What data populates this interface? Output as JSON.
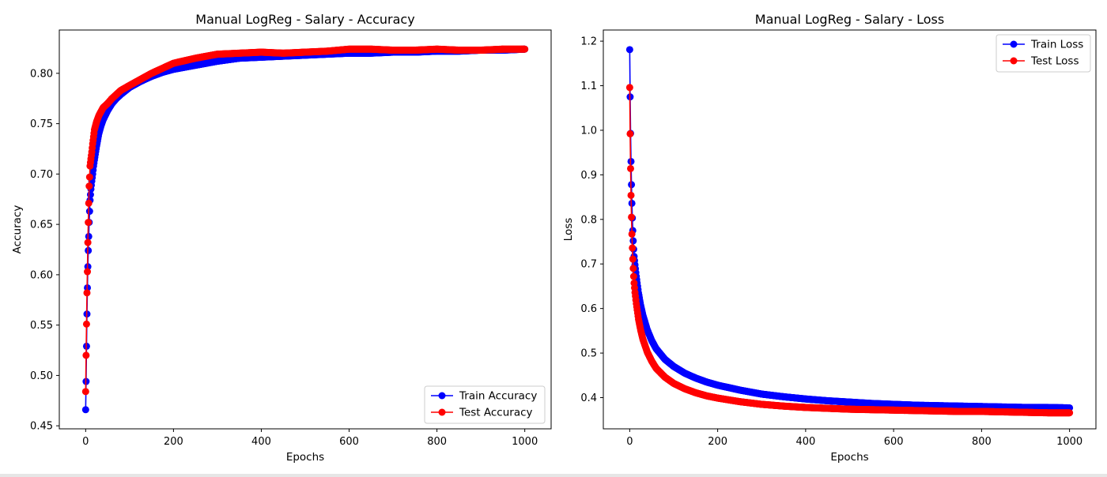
{
  "chart_data": [
    {
      "type": "line",
      "title": "Manual LogReg - Salary - Accuracy",
      "xlabel": "Epochs",
      "ylabel": "Accuracy",
      "xlim": [
        -60,
        1060
      ],
      "ylim": [
        0.447,
        0.843
      ],
      "xticks": [
        0,
        200,
        400,
        600,
        800,
        1000
      ],
      "yticks": [
        0.45,
        0.5,
        0.55,
        0.6,
        0.65,
        0.7,
        0.75,
        0.8
      ],
      "xtick_labels": [
        "0",
        "200",
        "400",
        "600",
        "800",
        "1000"
      ],
      "ytick_labels": [
        "0.45",
        "0.50",
        "0.55",
        "0.60",
        "0.65",
        "0.70",
        "0.75",
        "0.80"
      ],
      "legend": "lower-right",
      "markers": "every-epoch",
      "series": [
        {
          "name": "Train Accuracy",
          "color": "#0000ff",
          "points": [
            [
              0,
              0.466
            ],
            [
              1,
              0.494
            ],
            [
              2,
              0.529
            ],
            [
              3,
              0.561
            ],
            [
              4,
              0.587
            ],
            [
              5,
              0.608
            ],
            [
              6,
              0.624
            ],
            [
              7,
              0.638
            ],
            [
              8,
              0.652
            ],
            [
              9,
              0.663
            ],
            [
              10,
              0.674
            ],
            [
              12,
              0.685
            ],
            [
              14,
              0.693
            ],
            [
              16,
              0.7
            ],
            [
              18,
              0.708
            ],
            [
              20,
              0.714
            ],
            [
              25,
              0.728
            ],
            [
              30,
              0.74
            ],
            [
              35,
              0.748
            ],
            [
              40,
              0.754
            ],
            [
              50,
              0.763
            ],
            [
              60,
              0.77
            ],
            [
              70,
              0.775
            ],
            [
              80,
              0.779
            ],
            [
              100,
              0.786
            ],
            [
              125,
              0.792
            ],
            [
              150,
              0.797
            ],
            [
              175,
              0.801
            ],
            [
              200,
              0.804
            ],
            [
              250,
              0.808
            ],
            [
              300,
              0.812
            ],
            [
              350,
              0.815
            ],
            [
              400,
              0.816
            ],
            [
              450,
              0.817
            ],
            [
              500,
              0.818
            ],
            [
              550,
              0.819
            ],
            [
              600,
              0.82
            ],
            [
              650,
              0.82
            ],
            [
              700,
              0.821
            ],
            [
              750,
              0.821
            ],
            [
              800,
              0.822
            ],
            [
              850,
              0.822
            ],
            [
              900,
              0.823
            ],
            [
              950,
              0.823
            ],
            [
              1000,
              0.824
            ]
          ]
        },
        {
          "name": "Test Accuracy",
          "color": "#ff0000",
          "points": [
            [
              0,
              0.484
            ],
            [
              1,
              0.52
            ],
            [
              2,
              0.551
            ],
            [
              3,
              0.582
            ],
            [
              4,
              0.603
            ],
            [
              5,
              0.632
            ],
            [
              6,
              0.652
            ],
            [
              7,
              0.671
            ],
            [
              8,
              0.688
            ],
            [
              9,
              0.697
            ],
            [
              10,
              0.708
            ],
            [
              12,
              0.715
            ],
            [
              14,
              0.722
            ],
            [
              16,
              0.73
            ],
            [
              18,
              0.737
            ],
            [
              20,
              0.744
            ],
            [
              25,
              0.752
            ],
            [
              30,
              0.758
            ],
            [
              35,
              0.762
            ],
            [
              40,
              0.766
            ],
            [
              50,
              0.77
            ],
            [
              60,
              0.775
            ],
            [
              70,
              0.779
            ],
            [
              80,
              0.783
            ],
            [
              100,
              0.788
            ],
            [
              125,
              0.794
            ],
            [
              150,
              0.8
            ],
            [
              175,
              0.805
            ],
            [
              200,
              0.81
            ],
            [
              250,
              0.815
            ],
            [
              300,
              0.819
            ],
            [
              350,
              0.82
            ],
            [
              400,
              0.821
            ],
            [
              450,
              0.82
            ],
            [
              500,
              0.821
            ],
            [
              550,
              0.822
            ],
            [
              600,
              0.824
            ],
            [
              650,
              0.824
            ],
            [
              700,
              0.823
            ],
            [
              750,
              0.823
            ],
            [
              800,
              0.824
            ],
            [
              850,
              0.823
            ],
            [
              900,
              0.823
            ],
            [
              950,
              0.824
            ],
            [
              1000,
              0.824
            ]
          ]
        }
      ]
    },
    {
      "type": "line",
      "title": "Manual LogReg - Salary - Loss",
      "xlabel": "Epochs",
      "ylabel": "Loss",
      "xlim": [
        -60,
        1060
      ],
      "ylim": [
        0.33,
        1.225
      ],
      "xticks": [
        0,
        200,
        400,
        600,
        800,
        1000
      ],
      "yticks": [
        0.4,
        0.5,
        0.6,
        0.7,
        0.8,
        0.9,
        1.0,
        1.1,
        1.2
      ],
      "xtick_labels": [
        "0",
        "200",
        "400",
        "600",
        "800",
        "1000"
      ],
      "ytick_labels": [
        "0.4",
        "0.5",
        "0.6",
        "0.7",
        "0.8",
        "0.9",
        "1.0",
        "1.1",
        "1.2"
      ],
      "legend": "upper-right",
      "markers": "every-epoch",
      "series": [
        {
          "name": "Train Loss",
          "color": "#0000ff",
          "points": [
            [
              0,
              1.181
            ],
            [
              1,
              1.075
            ],
            [
              2,
              0.993
            ],
            [
              3,
              0.93
            ],
            [
              4,
              0.878
            ],
            [
              5,
              0.836
            ],
            [
              6,
              0.803
            ],
            [
              7,
              0.775
            ],
            [
              8,
              0.752
            ],
            [
              9,
              0.733
            ],
            [
              10,
              0.717
            ],
            [
              12,
              0.698
            ],
            [
              15,
              0.672
            ],
            [
              20,
              0.635
            ],
            [
              25,
              0.607
            ],
            [
              30,
              0.585
            ],
            [
              40,
              0.552
            ],
            [
              50,
              0.528
            ],
            [
              60,
              0.51
            ],
            [
              80,
              0.486
            ],
            [
              100,
              0.47
            ],
            [
              125,
              0.455
            ],
            [
              150,
              0.444
            ],
            [
              175,
              0.435
            ],
            [
              200,
              0.428
            ],
            [
              250,
              0.417
            ],
            [
              300,
              0.408
            ],
            [
              350,
              0.402
            ],
            [
              400,
              0.397
            ],
            [
              450,
              0.393
            ],
            [
              500,
              0.39
            ],
            [
              550,
              0.387
            ],
            [
              600,
              0.385
            ],
            [
              650,
              0.383
            ],
            [
              700,
              0.382
            ],
            [
              750,
              0.381
            ],
            [
              800,
              0.38
            ],
            [
              850,
              0.379
            ],
            [
              900,
              0.378
            ],
            [
              950,
              0.378
            ],
            [
              1000,
              0.377
            ]
          ]
        },
        {
          "name": "Test Loss",
          "color": "#ff0000",
          "points": [
            [
              0,
              1.096
            ],
            [
              1,
              0.992
            ],
            [
              2,
              0.914
            ],
            [
              3,
              0.854
            ],
            [
              4,
              0.805
            ],
            [
              5,
              0.767
            ],
            [
              6,
              0.736
            ],
            [
              7,
              0.711
            ],
            [
              8,
              0.69
            ],
            [
              9,
              0.672
            ],
            [
              10,
              0.657
            ],
            [
              12,
              0.636
            ],
            [
              15,
              0.611
            ],
            [
              20,
              0.576
            ],
            [
              25,
              0.551
            ],
            [
              30,
              0.531
            ],
            [
              40,
              0.502
            ],
            [
              50,
              0.482
            ],
            [
              60,
              0.466
            ],
            [
              80,
              0.446
            ],
            [
              100,
              0.432
            ],
            [
              125,
              0.42
            ],
            [
              150,
              0.411
            ],
            [
              175,
              0.404
            ],
            [
              200,
              0.399
            ],
            [
              250,
              0.391
            ],
            [
              300,
              0.385
            ],
            [
              350,
              0.381
            ],
            [
              400,
              0.378
            ],
            [
              450,
              0.376
            ],
            [
              500,
              0.374
            ],
            [
              550,
              0.373
            ],
            [
              600,
              0.372
            ],
            [
              650,
              0.371
            ],
            [
              700,
              0.37
            ],
            [
              750,
              0.369
            ],
            [
              800,
              0.369
            ],
            [
              850,
              0.368
            ],
            [
              900,
              0.367
            ],
            [
              950,
              0.366
            ],
            [
              1000,
              0.366
            ]
          ]
        }
      ]
    }
  ]
}
